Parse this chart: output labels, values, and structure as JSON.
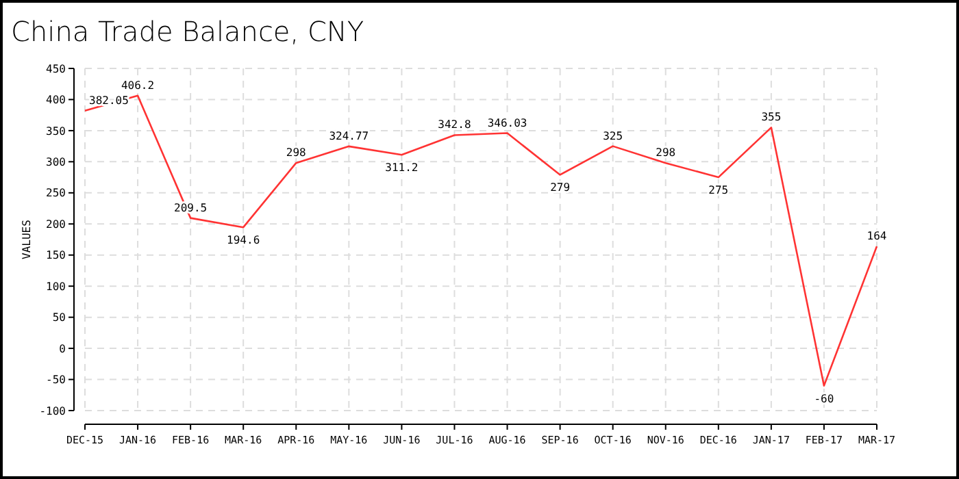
{
  "chart_data": {
    "type": "line",
    "title": "China Trade Balance, CNY",
    "ylabel": "VALUES",
    "categories": [
      "DEC-15",
      "JAN-16",
      "FEB-16",
      "MAR-16",
      "APR-16",
      "MAY-16",
      "JUN-16",
      "JUL-16",
      "AUG-16",
      "SEP-16",
      "OCT-16",
      "NOV-16",
      "DEC-16",
      "JAN-17",
      "FEB-17",
      "MAR-17"
    ],
    "series": [
      {
        "color": "#ff3333",
        "values": [
          382.05,
          406.2,
          209.5,
          194.6,
          298,
          324.77,
          311.2,
          342.8,
          346.03,
          279,
          325,
          298,
          275,
          355,
          -60,
          164
        ]
      }
    ],
    "value_labels": [
      "382.05",
      "406.2",
      "209.5",
      "194.6",
      "298",
      "324.77",
      "311.2",
      "342.8",
      "346.03",
      "279",
      "325",
      "298",
      "275",
      "355",
      "-60",
      "164"
    ],
    "ylim": [
      -100,
      450
    ],
    "yticks": [
      -100,
      -50,
      0,
      50,
      100,
      150,
      200,
      250,
      300,
      350,
      400,
      450
    ],
    "grid": true,
    "marker": "none",
    "line_style": "solid"
  }
}
